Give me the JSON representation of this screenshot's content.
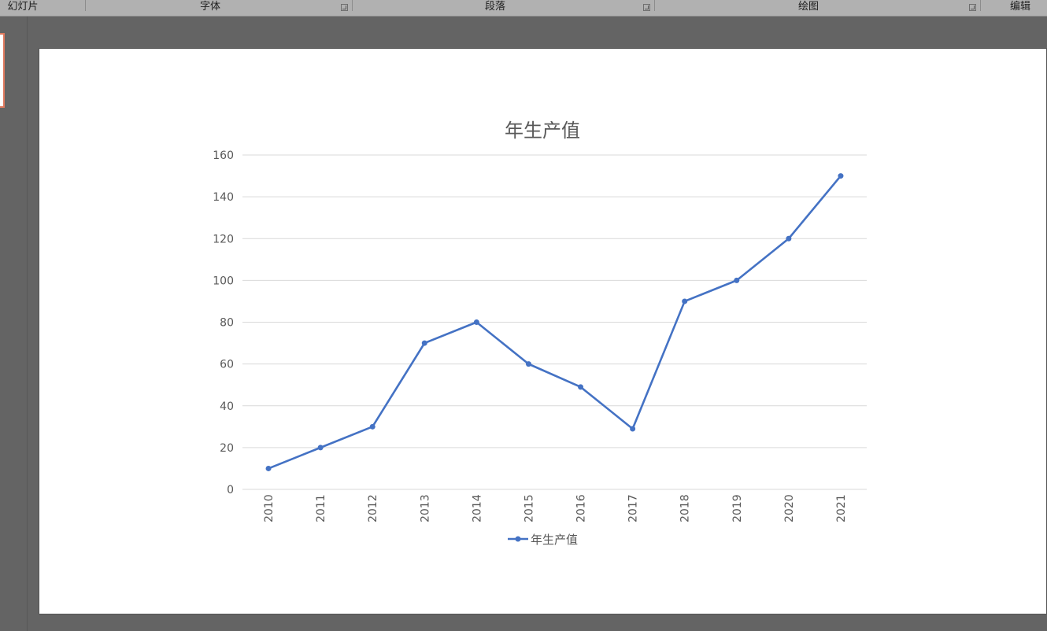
{
  "ribbon": {
    "groups": [
      {
        "label": "幻灯片",
        "has_launcher": false
      },
      {
        "label": "字体",
        "has_launcher": true
      },
      {
        "label": "段落",
        "has_launcher": true
      },
      {
        "label": "绘图",
        "has_launcher": true
      },
      {
        "label": "编辑",
        "has_launcher": false
      }
    ]
  },
  "colors": {
    "series": "#4472c4",
    "grid": "#d9d9d9",
    "axis_text": "#595959",
    "thumb_border": "#e07a5f"
  },
  "chart_data": {
    "type": "line",
    "title": "年生产值",
    "categories": [
      "2010",
      "2011",
      "2012",
      "2013",
      "2014",
      "2015",
      "2016",
      "2017",
      "2018",
      "2019",
      "2020",
      "2021"
    ],
    "series": [
      {
        "name": "年生产值",
        "values": [
          10,
          20,
          30,
          70,
          80,
          60,
          49,
          29,
          90,
          100,
          120,
          150
        ],
        "markers": true
      }
    ],
    "ylim": [
      0,
      160
    ],
    "yticks": [
      0,
      20,
      40,
      60,
      80,
      100,
      120,
      140,
      160
    ],
    "grid": true,
    "legend": "bottom",
    "xlabel": "",
    "ylabel": ""
  }
}
